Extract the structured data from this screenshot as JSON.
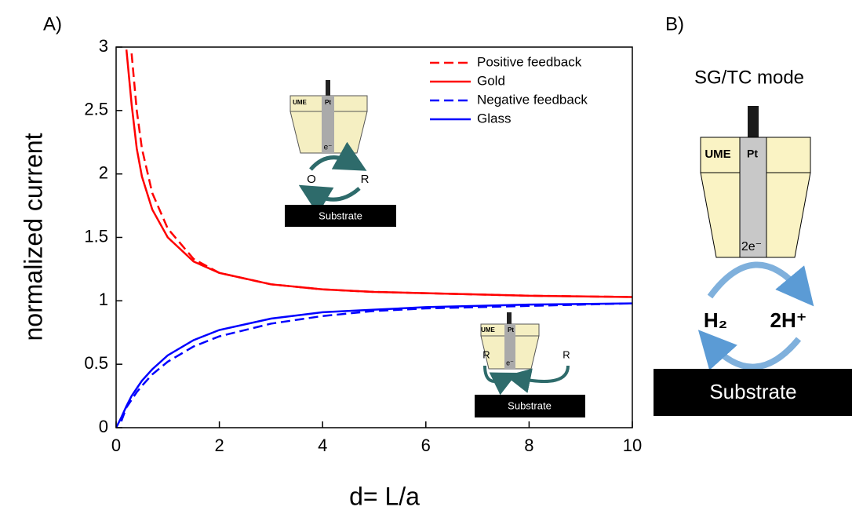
{
  "chart_data": {
    "type": "line",
    "x_label": "d= L/a",
    "y_label": "normalized current",
    "x": [
      0,
      0.1,
      0.2,
      0.3,
      0.4,
      0.5,
      0.7,
      1,
      1.5,
      2,
      3,
      4,
      5,
      6,
      8,
      10
    ],
    "series": [
      {
        "name": "Positive feedback",
        "color": "#ff0000",
        "linestyle": "dashed",
        "values": [
          null,
          null,
          null,
          2.95,
          2.5,
          2.2,
          1.85,
          1.57,
          1.33,
          1.22,
          1.13,
          1.09,
          1.07,
          1.06,
          1.04,
          1.03
        ]
      },
      {
        "name": "Gold",
        "color": "#ff0000",
        "linestyle": "solid",
        "values": [
          null,
          null,
          2.98,
          2.55,
          2.2,
          1.98,
          1.72,
          1.5,
          1.31,
          1.22,
          1.13,
          1.09,
          1.07,
          1.06,
          1.04,
          1.03
        ]
      },
      {
        "name": "Negative feedback",
        "color": "#0000ff",
        "linestyle": "dashed",
        "values": [
          null,
          0.05,
          0.16,
          0.22,
          0.28,
          0.33,
          0.42,
          0.52,
          0.64,
          0.72,
          0.82,
          0.88,
          0.92,
          0.94,
          0.96,
          0.98
        ]
      },
      {
        "name": "Glass",
        "color": "#0000ff",
        "linestyle": "solid",
        "values": [
          0,
          0.08,
          0.17,
          0.25,
          0.31,
          0.37,
          0.46,
          0.57,
          0.69,
          0.77,
          0.86,
          0.91,
          0.93,
          0.95,
          0.97,
          0.98
        ]
      }
    ],
    "xlim": [
      0,
      10
    ],
    "xticks": [
      0,
      2,
      4,
      6,
      8,
      10
    ],
    "ylim": [
      0,
      3
    ],
    "yticks": [
      0,
      0.5,
      1,
      1.5,
      2,
      2.5,
      3
    ],
    "legend": "upper right"
  },
  "panel_a": "A)",
  "inset_positive": {
    "ume": "UME",
    "pt": "Pt",
    "electron": "e⁻",
    "left": "O",
    "right": "R",
    "substrate": "Substrate"
  },
  "inset_negative": {
    "ume": "UME",
    "pt": "Pt",
    "electron": "e⁻",
    "left": "R",
    "right": "R",
    "substrate": "Substrate"
  },
  "panel_b": {
    "label": "B)",
    "title": "SG/TC mode",
    "ume": "UME",
    "pt": "Pt",
    "electron": "2e⁻",
    "left": "H₂",
    "right": "2H⁺",
    "substrate": "Substrate"
  }
}
